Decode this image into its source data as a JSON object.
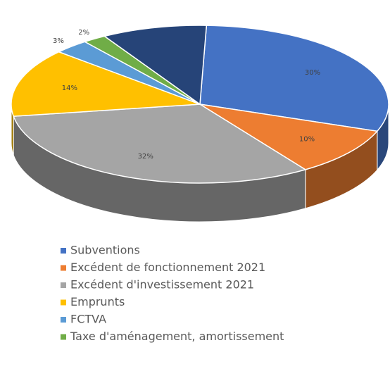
{
  "chart_data": {
    "type": "pie3d",
    "categories": [
      "Subventions",
      "Excédent de fonctionnement 2021",
      "Excédent d'investissement 2021",
      "Emprunts",
      "FCTVA",
      "Taxe d'aménagement, amortissement",
      null
    ],
    "values": [
      30,
      10,
      32,
      14,
      3,
      2,
      9
    ],
    "value_labels": [
      "30%",
      "10%",
      "32%",
      "14%",
      "3%",
      "2%",
      null
    ],
    "colors": [
      "#4472c4",
      "#ed7d31",
      "#a5a5a5",
      "#ffc000",
      "#5b9bd5",
      "#70ad47",
      "#264478"
    ]
  }
}
